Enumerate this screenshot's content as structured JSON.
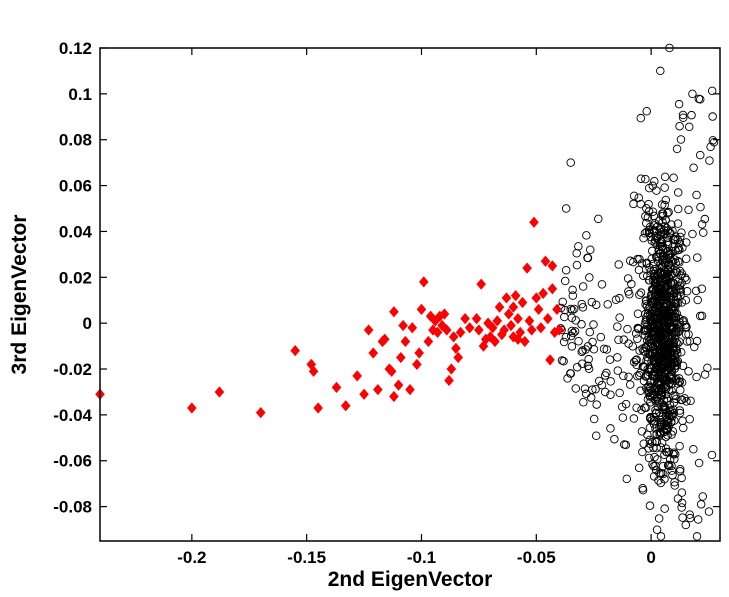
{
  "chart_data": {
    "type": "scatter",
    "title": "",
    "xlabel": "2nd EigenVector",
    "ylabel": "3rd EigenVector",
    "xlim": [
      -0.24,
      0.03
    ],
    "ylim": [
      -0.095,
      0.12
    ],
    "x_ticks": [
      -0.2,
      -0.15,
      -0.1,
      -0.05,
      0
    ],
    "x_tick_labels": [
      "-0.2",
      "-0.15",
      "-0.1",
      "-0.05",
      "0"
    ],
    "y_ticks": [
      -0.08,
      -0.06,
      -0.04,
      -0.02,
      0,
      0.02,
      0.04,
      0.06,
      0.08,
      0.1,
      0.12
    ],
    "y_tick_labels": [
      "-0.08",
      "-0.06",
      "-0.04",
      "-0.02",
      "0",
      "0.02",
      "0.04",
      "0.06",
      "0.08",
      "0.1",
      "0.12"
    ],
    "grid": false,
    "legend": "none",
    "series": [
      {
        "marker": "filled-diamond",
        "color": "#ff0000",
        "points": [
          [
            -0.24,
            -0.031
          ],
          [
            -0.2,
            -0.037
          ],
          [
            -0.188,
            -0.03
          ],
          [
            -0.17,
            -0.039
          ],
          [
            -0.155,
            -0.012
          ],
          [
            -0.148,
            -0.018
          ],
          [
            -0.147,
            -0.021
          ],
          [
            -0.145,
            -0.037
          ],
          [
            -0.137,
            -0.028
          ],
          [
            -0.133,
            -0.036
          ],
          [
            -0.128,
            -0.023
          ],
          [
            -0.125,
            -0.031
          ],
          [
            -0.123,
            -0.003
          ],
          [
            -0.121,
            -0.013
          ],
          [
            -0.119,
            -0.029
          ],
          [
            -0.117,
            -0.008
          ],
          [
            -0.114,
            -0.02
          ],
          [
            -0.112,
            -0.032
          ],
          [
            -0.112,
            0.005
          ],
          [
            -0.11,
            -0.027
          ],
          [
            -0.109,
            -0.015
          ],
          [
            -0.108,
            -0.001
          ],
          [
            -0.107,
            -0.008
          ],
          [
            -0.105,
            -0.029
          ],
          [
            -0.104,
            -0.002
          ],
          [
            -0.102,
            -0.018
          ],
          [
            -0.101,
            -0.013
          ],
          [
            -0.1,
            0.006
          ],
          [
            -0.099,
            0.018
          ],
          [
            -0.097,
            -0.008
          ],
          [
            -0.096,
            0.003
          ],
          [
            -0.095,
            -0.003
          ],
          [
            -0.094,
            0.001
          ],
          [
            -0.093,
            -0.004
          ],
          [
            -0.092,
            0.003
          ],
          [
            -0.091,
            -0.001
          ],
          [
            -0.09,
            0.004
          ],
          [
            -0.089,
            -0.003
          ],
          [
            -0.088,
            -0.025
          ],
          [
            -0.087,
            -0.02
          ],
          [
            -0.086,
            -0.006
          ],
          [
            -0.085,
            -0.011
          ],
          [
            -0.084,
            -0.015
          ],
          [
            -0.083,
            -0.004
          ],
          [
            -0.076,
            0.002
          ],
          [
            -0.075,
            -0.003
          ],
          [
            -0.074,
            0.017
          ],
          [
            -0.073,
            -0.01
          ],
          [
            -0.072,
            -0.007
          ],
          [
            -0.071,
            0.0
          ],
          [
            -0.07,
            -0.006
          ],
          [
            -0.069,
            -0.002
          ],
          [
            -0.068,
            -0.008
          ],
          [
            -0.067,
            0.001
          ],
          [
            -0.066,
            0.007
          ],
          [
            -0.065,
            -0.005
          ],
          [
            -0.064,
            -0.003
          ],
          [
            -0.063,
            0.011
          ],
          [
            -0.062,
            0.004
          ],
          [
            -0.061,
            -0.001
          ],
          [
            -0.06,
            -0.006
          ],
          [
            -0.059,
            0.012
          ],
          [
            -0.058,
            0.002
          ],
          [
            -0.057,
            -0.004
          ],
          [
            -0.056,
            0.009
          ],
          [
            -0.055,
            -0.008
          ],
          [
            -0.054,
            0.024
          ],
          [
            -0.053,
            0.001
          ],
          [
            -0.052,
            -0.003
          ],
          [
            -0.051,
            0.044
          ],
          [
            -0.05,
            0.011
          ],
          [
            -0.049,
            0.006
          ],
          [
            -0.048,
            -0.002
          ],
          [
            -0.047,
            0.013
          ],
          [
            -0.046,
            0.027
          ],
          [
            -0.045,
            0.002
          ],
          [
            -0.044,
            -0.016
          ],
          [
            -0.043,
            0.025
          ],
          [
            -0.042,
            -0.004
          ],
          [
            -0.041,
            0.006
          ],
          [
            -0.04,
            -0.003
          ],
          [
            -0.043,
            0.015
          ],
          [
            -0.058,
            -0.007
          ],
          [
            -0.06,
            0.007
          ],
          [
            -0.079,
            -0.002
          ],
          [
            -0.081,
            0.002
          ],
          [
            -0.113,
            -0.021
          ],
          [
            -0.116,
            -0.007
          ]
        ]
      },
      {
        "marker": "open-circle",
        "color": "#000000",
        "points": []
      }
    ]
  }
}
